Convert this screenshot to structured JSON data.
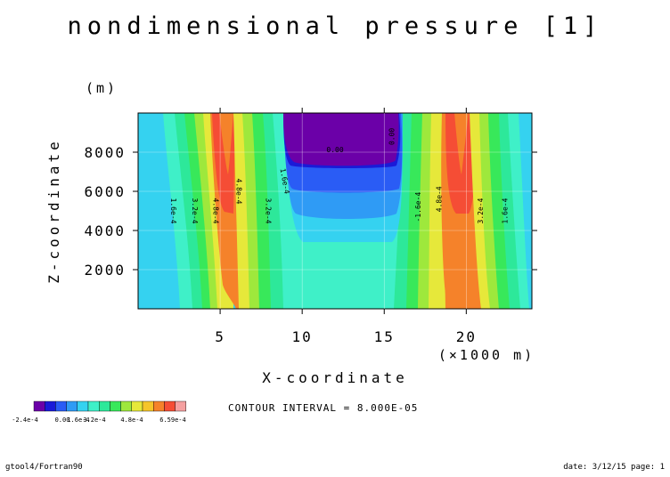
{
  "chart_data": {
    "type": "heatmap",
    "title": "nondimensional pressure [1]",
    "x": {
      "label": "X-coordinate",
      "unit": "(×1000 m)",
      "range": [
        0,
        24
      ],
      "ticks": [
        5,
        10,
        15,
        20
      ],
      "tick_labels": [
        "5",
        "10",
        "15",
        "20"
      ]
    },
    "y": {
      "label": "Z-coordinate",
      "unit": "(m)",
      "range": [
        0,
        10000
      ],
      "ticks": [
        2000,
        4000,
        6000,
        8000
      ],
      "tick_labels": [
        "2000",
        "4000",
        "6000",
        "8000"
      ]
    },
    "contour_interval_text": "CONTOUR INTERVAL = 8.000E-05",
    "colorbar": {
      "colors": [
        "#6b00a8",
        "#1a1ad8",
        "#2a5cf5",
        "#2f9bf5",
        "#35d2f0",
        "#3ff0c8",
        "#2de89a",
        "#38e85a",
        "#9ee83c",
        "#e6e83a",
        "#f5c52a",
        "#f5822a",
        "#f54d35",
        "#f5a0a0"
      ],
      "labels": [
        "-2.4e-4",
        "0.00",
        "1.6e-4",
        "3.2e-4",
        "4.8e-4",
        "6.59e-4"
      ]
    },
    "contour_labels": [
      "1.6e-4",
      "3.2e-4",
      "4.8e-4",
      "4.8e-4",
      "3.2e-4",
      "1.6e-4",
      "0.00",
      "0.00",
      "4.8e-4",
      "3.2e-4",
      "1.6e-4",
      "-1.6e-4"
    ]
  },
  "footer": {
    "left": "gtool4/Fortran90",
    "right": "date: 3/12/15 page: 1"
  }
}
